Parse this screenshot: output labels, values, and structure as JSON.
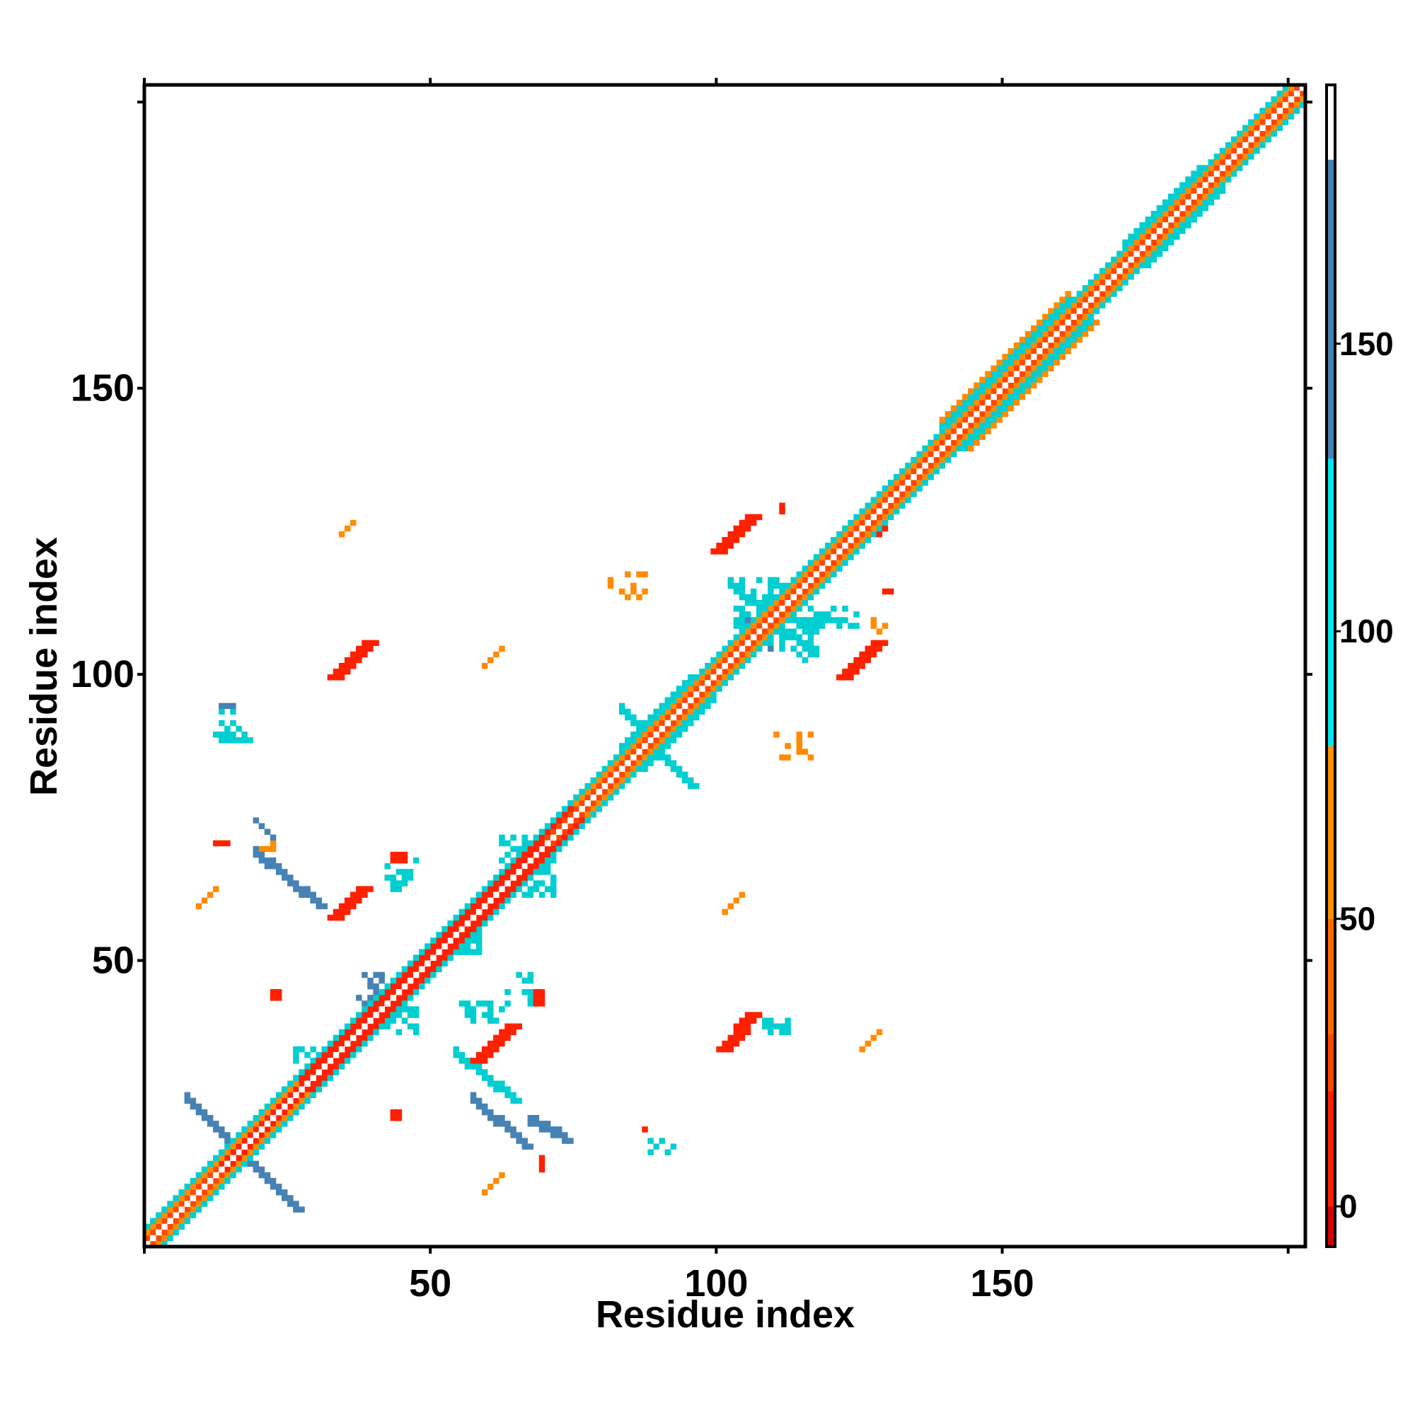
{
  "chart_data": {
    "type": "heatmap",
    "title": "",
    "xlabel": "Residue index",
    "ylabel": "Residue index",
    "xlim": [
      0,
      203
    ],
    "ylim": [
      0,
      203
    ],
    "x_ticks": [
      50,
      100,
      150
    ],
    "y_ticks": [
      50,
      100,
      150
    ],
    "grid": false,
    "legend": "colorbar-right",
    "colorbar": {
      "range": [
        -7,
        195
      ],
      "ticks": [
        0,
        50,
        100,
        150
      ],
      "bins": [
        {
          "from": -7,
          "to": 0,
          "color": "#d40000"
        },
        {
          "from": 0,
          "to": 20,
          "color": "#ff2000"
        },
        {
          "from": 20,
          "to": 30,
          "color": "#ff4500"
        },
        {
          "from": 30,
          "to": 50,
          "color": "#ff6a00"
        },
        {
          "from": 50,
          "to": 80,
          "color": "#ff9000"
        },
        {
          "from": 80,
          "to": 130,
          "color": "#00e5ee"
        },
        {
          "from": 130,
          "to": 182,
          "color": "#4682b4"
        },
        {
          "from": 182,
          "to": 195,
          "color": "#ffffff"
        }
      ]
    },
    "colors": {
      "diagonal": "#ffffff",
      "red": "#ff2000",
      "orange_red": "#ff4500",
      "orange": "#ff8c00",
      "cyan": "#00ced1",
      "steel_blue": "#4682b4"
    },
    "diagonal_bands": [
      {
        "from": 1,
        "to": 203,
        "offset": 1,
        "color": "orange_red"
      },
      {
        "from": 1,
        "to": 203,
        "offset": 2,
        "color": "orange"
      },
      {
        "from": 1,
        "to": 203,
        "offset": 3,
        "color": "cyan"
      },
      {
        "from": 14,
        "to": 70,
        "offset": 1,
        "color": "red"
      },
      {
        "from": 28,
        "to": 75,
        "offset": 2,
        "color": "red"
      },
      {
        "from": 84,
        "to": 96,
        "offset": 4,
        "color": "cyan"
      },
      {
        "from": 140,
        "to": 162,
        "offset": 4,
        "color": "cyan"
      },
      {
        "from": 140,
        "to": 162,
        "offset": 5,
        "color": "orange"
      },
      {
        "from": 172,
        "to": 185,
        "offset": 4,
        "color": "cyan"
      }
    ],
    "antidiagonal_segments": [
      {
        "x0": 8,
        "y0": 26,
        "x1": 27,
        "y1": 7,
        "width": 2,
        "color": "steel_blue"
      },
      {
        "x0": 58,
        "y0": 26,
        "x1": 67,
        "y1": 18,
        "width": 2,
        "color": "steel_blue"
      },
      {
        "x0": 68,
        "y0": 22,
        "x1": 74,
        "y1": 19,
        "width": 2,
        "color": "steel_blue"
      },
      {
        "x0": 20,
        "y0": 69,
        "x1": 31,
        "y1": 60,
        "width": 2,
        "color": "steel_blue"
      },
      {
        "x0": 20,
        "y0": 75,
        "x1": 23,
        "y1": 72,
        "width": 1,
        "color": "steel_blue"
      },
      {
        "x0": 84,
        "y0": 94,
        "x1": 96,
        "y1": 81,
        "width": 2,
        "color": "cyan"
      },
      {
        "x0": 103,
        "y0": 116,
        "x1": 117,
        "y1": 104,
        "width": 2,
        "color": "cyan"
      },
      {
        "x0": 106,
        "y0": 110,
        "x1": 110,
        "y1": 105,
        "width": 1,
        "color": "steel_blue"
      },
      {
        "x0": 55,
        "y0": 34,
        "x1": 65,
        "y1": 26,
        "width": 2,
        "color": "cyan"
      }
    ],
    "parallel_segments": [
      {
        "x0": 33,
        "y0": 58,
        "x1": 38,
        "y1": 63,
        "width": 3,
        "color": "red"
      },
      {
        "x0": 33,
        "y0": 100,
        "x1": 39,
        "y1": 106,
        "width": 3,
        "color": "red"
      },
      {
        "x0": 58,
        "y0": 33,
        "x1": 64,
        "y1": 39,
        "width": 3,
        "color": "red"
      },
      {
        "x0": 101,
        "y0": 35,
        "x1": 106,
        "y1": 41,
        "width": 3,
        "color": "red"
      },
      {
        "x0": 100,
        "y0": 122,
        "x1": 106,
        "y1": 128,
        "width": 3,
        "color": "red"
      },
      {
        "x0": 122,
        "y0": 100,
        "x1": 128,
        "y1": 106,
        "width": 3,
        "color": "red"
      },
      {
        "x0": 128,
        "y0": 125,
        "x1": 132,
        "y1": 131,
        "width": 2,
        "color": "red"
      },
      {
        "x0": 35,
        "y0": 125,
        "x1": 37,
        "y1": 127,
        "width": 1,
        "color": "orange"
      },
      {
        "x0": 60,
        "y0": 10,
        "x1": 63,
        "y1": 13,
        "width": 1,
        "color": "orange"
      },
      {
        "x0": 126,
        "y0": 35,
        "x1": 129,
        "y1": 38,
        "width": 1,
        "color": "orange"
      },
      {
        "x0": 102,
        "y0": 59,
        "x1": 105,
        "y1": 62,
        "width": 1,
        "color": "orange"
      },
      {
        "x0": 60,
        "y0": 102,
        "x1": 63,
        "y1": 105,
        "width": 1,
        "color": "orange"
      },
      {
        "x0": 10,
        "y0": 60,
        "x1": 13,
        "y1": 63,
        "width": 1,
        "color": "orange"
      }
    ],
    "clusters": [
      {
        "x": 38,
        "y": 43,
        "w": 5,
        "h": 6,
        "color": "steel_blue",
        "fill": 0.55
      },
      {
        "x": 43,
        "y": 38,
        "w": 6,
        "h": 5,
        "color": "cyan",
        "fill": 0.5
      },
      {
        "x": 54,
        "y": 52,
        "w": 6,
        "h": 5,
        "color": "cyan",
        "fill": 0.7
      },
      {
        "x": 63,
        "y": 66,
        "w": 8,
        "h": 7,
        "color": "cyan",
        "fill": 0.6
      },
      {
        "x": 66,
        "y": 62,
        "w": 7,
        "h": 8,
        "color": "cyan",
        "fill": 0.6
      },
      {
        "x": 104,
        "y": 109,
        "w": 10,
        "h": 9,
        "color": "cyan",
        "fill": 0.45
      },
      {
        "x": 110,
        "y": 103,
        "w": 9,
        "h": 10,
        "color": "cyan",
        "fill": 0.45
      },
      {
        "x": 43,
        "y": 63,
        "w": 6,
        "h": 6,
        "color": "cyan",
        "fill": 0.35
      },
      {
        "x": 63,
        "y": 43,
        "w": 6,
        "h": 6,
        "color": "cyan",
        "fill": 0.35
      },
      {
        "x": 14,
        "y": 89,
        "w": 4,
        "h": 7,
        "color": "cyan",
        "fill": 0.4
      },
      {
        "x": 56,
        "y": 40,
        "w": 8,
        "h": 4,
        "color": "cyan",
        "fill": 0.4
      },
      {
        "x": 27,
        "y": 33,
        "w": 6,
        "h": 3,
        "color": "cyan",
        "fill": 0.5
      },
      {
        "x": 88,
        "y": 17,
        "w": 6,
        "h": 4,
        "color": "cyan",
        "fill": 0.4
      },
      {
        "x": 109,
        "y": 38,
        "w": 5,
        "h": 3,
        "color": "cyan",
        "fill": 0.6
      },
      {
        "x": 119,
        "y": 109,
        "w": 7,
        "h": 4,
        "color": "cyan",
        "fill": 0.5
      },
      {
        "x": 108,
        "y": 112,
        "w": 3,
        "h": 2,
        "color": "cyan",
        "fill": 0.6
      },
      {
        "x": 82,
        "y": 113,
        "w": 7,
        "h": 6,
        "color": "orange",
        "fill": 0.35
      },
      {
        "x": 111,
        "y": 86,
        "w": 7,
        "h": 5,
        "color": "orange",
        "fill": 0.35
      },
      {
        "x": 128,
        "y": 108,
        "w": 3,
        "h": 3,
        "color": "orange",
        "fill": 0.6
      },
      {
        "x": 86,
        "y": 19,
        "w": 3,
        "h": 3,
        "color": "red",
        "fill": 0.4
      },
      {
        "x": 44,
        "y": 68,
        "w": 3,
        "h": 2,
        "color": "red",
        "fill": 0.8
      },
      {
        "x": 21,
        "y": 70,
        "w": 3,
        "h": 2,
        "color": "orange",
        "fill": 0.7
      },
      {
        "x": 23,
        "y": 44,
        "w": 2,
        "h": 2,
        "color": "red",
        "fill": 0.9
      },
      {
        "x": 69,
        "y": 43,
        "w": 2,
        "h": 3,
        "color": "red",
        "fill": 0.9
      },
      {
        "x": 44,
        "y": 23,
        "w": 2,
        "h": 2,
        "color": "red",
        "fill": 0.9
      },
      {
        "x": 70,
        "y": 14,
        "w": 1,
        "h": 3,
        "color": "red",
        "fill": 0.9
      },
      {
        "x": 13,
        "y": 71,
        "w": 3,
        "h": 1,
        "color": "red",
        "fill": 0.9
      },
      {
        "x": 13,
        "y": 89,
        "w": 7,
        "h": 2,
        "color": "cyan",
        "fill": 0.6
      },
      {
        "x": 14,
        "y": 95,
        "w": 3,
        "h": 1,
        "color": "steel_blue",
        "fill": 0.8
      },
      {
        "x": 130,
        "y": 115,
        "w": 2,
        "h": 1,
        "color": "red",
        "fill": 0.9
      },
      {
        "x": 112,
        "y": 129,
        "w": 1,
        "h": 2,
        "color": "red",
        "fill": 0.9
      }
    ]
  }
}
